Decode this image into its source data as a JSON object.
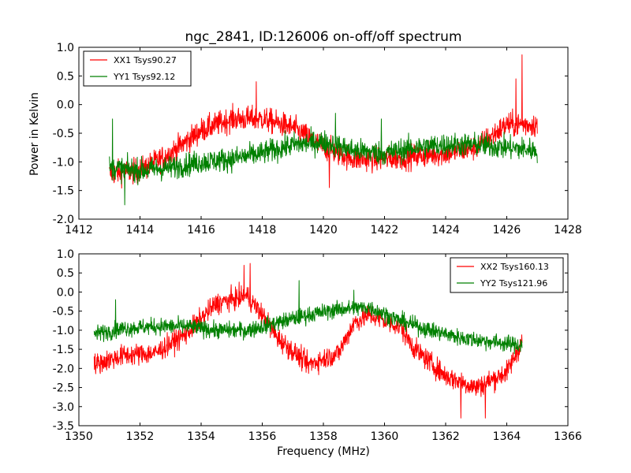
{
  "title": "ngc_2841, ID:126006 on-off/off spectrum",
  "chart_data": [
    {
      "type": "line",
      "title": "ngc_2841, ID:126006 on-off/off spectrum",
      "xlabel": "",
      "ylabel": "Power in Kelvin",
      "xlim": [
        1412,
        1428
      ],
      "ylim": [
        -2.0,
        1.0
      ],
      "x_ticks": [
        "1412",
        "1414",
        "1416",
        "1418",
        "1420",
        "1422",
        "1424",
        "1426",
        "1428"
      ],
      "y_ticks": [
        "-2.0",
        "-1.5",
        "-1.0",
        "-0.5",
        "0.0",
        "0.5",
        "1.0"
      ],
      "grid": false,
      "legend_position": "top-left",
      "x_range": [
        1413,
        1427
      ],
      "series": [
        {
          "name": "XX1 Tsys90.27",
          "color": "#ff0000",
          "trend": [
            [
              1413.0,
              -1.2
            ],
            [
              1414.0,
              -1.15
            ],
            [
              1415.0,
              -0.85
            ],
            [
              1416.0,
              -0.45
            ],
            [
              1417.0,
              -0.25
            ],
            [
              1418.0,
              -0.25
            ],
            [
              1419.0,
              -0.4
            ],
            [
              1420.0,
              -0.75
            ],
            [
              1421.0,
              -0.95
            ],
            [
              1422.0,
              -0.95
            ],
            [
              1423.0,
              -0.9
            ],
            [
              1424.0,
              -0.85
            ],
            [
              1425.0,
              -0.75
            ],
            [
              1426.0,
              -0.35
            ],
            [
              1427.0,
              -0.35
            ]
          ],
          "noise": 0.42,
          "spikes": [
            [
              1417.8,
              0.4
            ],
            [
              1426.5,
              0.87
            ],
            [
              1426.3,
              0.45
            ],
            [
              1420.2,
              -1.45
            ]
          ]
        },
        {
          "name": "YY1 Tsys92.12",
          "color": "#008000",
          "trend": [
            [
              1413.0,
              -1.1
            ],
            [
              1414.0,
              -1.15
            ],
            [
              1415.0,
              -1.1
            ],
            [
              1416.0,
              -1.0
            ],
            [
              1417.0,
              -0.95
            ],
            [
              1418.0,
              -0.85
            ],
            [
              1419.0,
              -0.7
            ],
            [
              1420.0,
              -0.65
            ],
            [
              1421.0,
              -0.8
            ],
            [
              1422.0,
              -0.85
            ],
            [
              1423.0,
              -0.75
            ],
            [
              1424.0,
              -0.7
            ],
            [
              1425.0,
              -0.7
            ],
            [
              1426.0,
              -0.75
            ],
            [
              1427.0,
              -0.8
            ]
          ],
          "noise": 0.4,
          "spikes": [
            [
              1413.1,
              -0.25
            ],
            [
              1420.4,
              -0.15
            ],
            [
              1421.9,
              -0.25
            ],
            [
              1413.5,
              -1.75
            ]
          ]
        }
      ]
    },
    {
      "type": "line",
      "title": "",
      "xlabel": "Frequency (MHz)",
      "ylabel": "",
      "xlim": [
        1350,
        1366
      ],
      "ylim": [
        -3.5,
        1.0
      ],
      "x_ticks": [
        "1350",
        "1352",
        "1354",
        "1356",
        "1358",
        "1360",
        "1362",
        "1364",
        "1366"
      ],
      "y_ticks": [
        "-3.5",
        "-3.0",
        "-2.5",
        "-2.0",
        "-1.5",
        "-1.0",
        "-0.5",
        "0.0",
        "0.5",
        "1.0"
      ],
      "grid": false,
      "legend_position": "top-right",
      "x_range": [
        1350.5,
        1364.5
      ],
      "series": [
        {
          "name": "XX2 Tsys160.13",
          "color": "#ff0000",
          "trend": [
            [
              1350.5,
              -1.9
            ],
            [
              1351.5,
              -1.65
            ],
            [
              1352.5,
              -1.6
            ],
            [
              1353.5,
              -1.1
            ],
            [
              1354.5,
              -0.3
            ],
            [
              1355.5,
              -0.1
            ],
            [
              1356.0,
              -0.6
            ],
            [
              1356.5,
              -1.2
            ],
            [
              1357.5,
              -1.9
            ],
            [
              1358.5,
              -1.6
            ],
            [
              1359.0,
              -0.8
            ],
            [
              1359.5,
              -0.6
            ],
            [
              1360.5,
              -0.9
            ],
            [
              1361.0,
              -1.5
            ],
            [
              1362.0,
              -2.2
            ],
            [
              1363.0,
              -2.5
            ],
            [
              1364.0,
              -2.1
            ],
            [
              1364.5,
              -1.3
            ]
          ],
          "noise": 0.55,
          "spikes": [
            [
              1355.6,
              0.75
            ],
            [
              1355.4,
              0.7
            ],
            [
              1362.5,
              -3.3
            ],
            [
              1363.3,
              -3.3
            ]
          ]
        },
        {
          "name": "YY2 Tsys121.96",
          "color": "#008000",
          "trend": [
            [
              1350.5,
              -1.1
            ],
            [
              1351.5,
              -0.95
            ],
            [
              1352.5,
              -0.9
            ],
            [
              1353.5,
              -0.9
            ],
            [
              1354.5,
              -1.0
            ],
            [
              1355.5,
              -1.0
            ],
            [
              1356.5,
              -0.8
            ],
            [
              1357.5,
              -0.6
            ],
            [
              1358.5,
              -0.45
            ],
            [
              1359.5,
              -0.4
            ],
            [
              1360.5,
              -0.75
            ],
            [
              1361.5,
              -1.0
            ],
            [
              1362.5,
              -1.2
            ],
            [
              1363.5,
              -1.3
            ],
            [
              1364.5,
              -1.4
            ]
          ],
          "noise": 0.42,
          "spikes": [
            [
              1351.2,
              -0.2
            ],
            [
              1359.0,
              0.05
            ],
            [
              1357.2,
              0.3
            ]
          ]
        }
      ]
    }
  ]
}
